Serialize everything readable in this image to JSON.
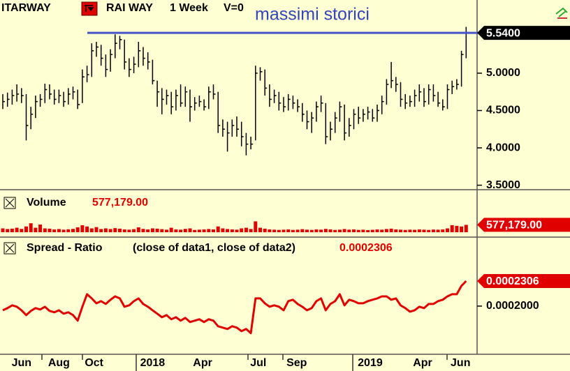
{
  "chart_data": [
    {
      "type": "ohlc",
      "symbol": "ITARWAY",
      "title": "RAI WAY",
      "interval": "1 Week",
      "note": "V=0",
      "color": "#000000",
      "annotation": {
        "text": "massimi storici",
        "level": 5.54,
        "color": "#4455cc"
      },
      "high": [
        4.72,
        4.74,
        4.78,
        4.85,
        4.8,
        4.72,
        4.55,
        4.7,
        4.72,
        4.86,
        4.85,
        4.78,
        4.78,
        4.75,
        4.8,
        4.82,
        4.78,
        5.05,
        5.1,
        5.4,
        5.42,
        5.38,
        5.25,
        5.32,
        5.52,
        5.5,
        5.45,
        5.2,
        5.22,
        5.42,
        5.35,
        5.28,
        5.18,
        4.9,
        4.8,
        4.78,
        4.75,
        4.78,
        4.85,
        4.82,
        4.78,
        4.68,
        4.7,
        4.65,
        4.82,
        4.85,
        4.75,
        4.38,
        4.35,
        4.38,
        4.42,
        4.35,
        4.2,
        4.15,
        5.1,
        5.08,
        5.05,
        4.85,
        4.78,
        4.75,
        4.68,
        4.72,
        4.7,
        4.65,
        4.6,
        4.5,
        4.48,
        4.62,
        4.7,
        4.6,
        4.35,
        4.48,
        4.62,
        4.58,
        4.4,
        4.52,
        4.55,
        4.52,
        4.55,
        4.52,
        4.58,
        4.7,
        4.92,
        5.15,
        4.95,
        4.88,
        4.72,
        4.7,
        4.78,
        4.85,
        4.8,
        4.85,
        4.85,
        4.75,
        4.65,
        4.85,
        4.9,
        4.92,
        5.3,
        5.62
      ],
      "low": [
        4.52,
        4.55,
        4.58,
        4.62,
        4.6,
        4.1,
        4.25,
        4.4,
        4.55,
        4.6,
        4.65,
        4.58,
        4.6,
        4.55,
        4.58,
        4.65,
        4.52,
        4.6,
        4.88,
        4.95,
        5.22,
        5.1,
        4.95,
        5.02,
        5.2,
        5.32,
        5.05,
        4.95,
        5.0,
        5.08,
        5.1,
        5.05,
        4.85,
        4.55,
        4.45,
        4.58,
        4.45,
        4.5,
        4.55,
        4.55,
        4.35,
        4.5,
        4.55,
        4.5,
        4.52,
        4.65,
        4.2,
        4.15,
        3.95,
        4.15,
        4.15,
        4.02,
        3.9,
        3.98,
        4.1,
        4.9,
        4.7,
        4.55,
        4.6,
        4.5,
        4.48,
        4.5,
        4.52,
        4.48,
        4.35,
        4.25,
        4.2,
        4.35,
        4.48,
        4.05,
        4.1,
        4.2,
        4.35,
        4.1,
        4.15,
        4.25,
        4.32,
        4.35,
        4.38,
        4.35,
        4.35,
        4.45,
        4.58,
        4.8,
        4.75,
        4.55,
        4.52,
        4.55,
        4.55,
        4.62,
        4.55,
        4.58,
        4.62,
        4.55,
        4.5,
        4.52,
        4.72,
        4.78,
        4.82,
        5.2
      ],
      "close": [
        4.62,
        4.65,
        4.7,
        4.72,
        4.7,
        4.3,
        4.45,
        4.62,
        4.65,
        4.78,
        4.72,
        4.65,
        4.7,
        4.62,
        4.72,
        4.75,
        4.58,
        4.95,
        4.98,
        5.3,
        5.35,
        5.2,
        5.05,
        5.25,
        5.4,
        5.45,
        5.15,
        5.05,
        5.12,
        5.3,
        5.2,
        5.15,
        4.9,
        4.75,
        4.65,
        4.7,
        4.55,
        4.7,
        4.6,
        4.75,
        4.55,
        4.6,
        4.62,
        4.55,
        4.75,
        4.72,
        4.3,
        4.25,
        4.2,
        4.3,
        4.25,
        4.15,
        4.05,
        4.05,
        5.0,
        5.02,
        4.8,
        4.65,
        4.7,
        4.6,
        4.55,
        4.65,
        4.6,
        4.55,
        4.45,
        4.35,
        4.4,
        4.55,
        4.6,
        4.15,
        4.25,
        4.4,
        4.55,
        4.2,
        4.3,
        4.45,
        4.4,
        4.45,
        4.48,
        4.4,
        4.5,
        4.62,
        4.85,
        4.9,
        4.85,
        4.65,
        4.6,
        4.62,
        4.7,
        4.75,
        4.62,
        4.78,
        4.7,
        4.6,
        4.55,
        4.78,
        4.82,
        4.85,
        5.25,
        5.54
      ],
      "ylim": [
        3.44,
        5.98
      ],
      "yticks": [
        {
          "value": 3.5,
          "label": "3.5000"
        },
        {
          "value": 4,
          "label": "4.0000"
        },
        {
          "value": 4.5,
          "label": "4.5000"
        },
        {
          "value": 5,
          "label": "5.0000"
        }
      ],
      "xticks": [
        {
          "value": 4,
          "label": "Jun"
        },
        {
          "value": 12,
          "label": "Aug"
        },
        {
          "value": 19.5,
          "label": "Oct"
        },
        {
          "value": 32,
          "label": "2018"
        },
        {
          "value": 42.7,
          "label": "Apr"
        },
        {
          "value": 54.6,
          "label": "Jul"
        },
        {
          "value": 62.8,
          "label": "Sep"
        },
        {
          "value": 78.5,
          "label": "2019"
        },
        {
          "value": 89.7,
          "label": "Apr"
        },
        {
          "value": 97.8,
          "label": "Jun"
        }
      ],
      "last_value": {
        "value": 5.54,
        "label": "5.5400"
      }
    },
    {
      "type": "bar",
      "title": "Volume",
      "color": "#e00000",
      "values": [
        300000,
        250000,
        280000,
        350000,
        260000,
        450000,
        700000,
        350000,
        600000,
        300000,
        280000,
        220000,
        250000,
        200000,
        230000,
        260000,
        380000,
        550000,
        450000,
        300000,
        400000,
        250000,
        300000,
        250000,
        320000,
        280000,
        220000,
        200000,
        240000,
        380000,
        260000,
        220000,
        300000,
        280000,
        240000,
        200000,
        350000,
        220000,
        200000,
        260000,
        300000,
        180000,
        200000,
        220000,
        250000,
        220000,
        450000,
        300000,
        250000,
        220000,
        200000,
        300000,
        350000,
        250000,
        850000,
        350000,
        280000,
        220000,
        200000,
        180000,
        200000,
        220000,
        180000,
        200000,
        240000,
        200000,
        180000,
        220000,
        200000,
        260000,
        220000,
        180000,
        200000,
        250000,
        200000,
        220000,
        180000,
        200000,
        170000,
        190000,
        220000,
        200000,
        250000,
        280000,
        220000,
        200000,
        180000,
        200000,
        190000,
        220000,
        200000,
        180000,
        210000,
        200000,
        220000,
        300000,
        550000,
        500000,
        450000,
        577179
      ],
      "ylim": [
        0,
        3000000
      ],
      "last_value": {
        "value": 577179,
        "label": "577,179.00"
      }
    },
    {
      "type": "line",
      "title": "Spread - Ratio",
      "subtitle": "(close of data1,  close of data2)",
      "color": "#e00000",
      "values": [
        0.0001949,
        0.0001975,
        0.0002009,
        0.0001992,
        0.0001949,
        0.000189,
        0.0001941,
        0.0001975,
        0.0001958,
        0.0001992,
        0.0001941,
        0.0001924,
        0.0001949,
        0.0001907,
        0.0001924,
        0.000189,
        0.0001822,
        0.0001992,
        0.0002145,
        0.0002094,
        0.0002034,
        0.000206,
        0.0002026,
        0.0002077,
        0.0002119,
        0.0002094,
        0.0001992,
        0.0002009,
        0.000206,
        0.0002094,
        0.0002026,
        0.0001992,
        0.0001949,
        0.0001907,
        0.0001864,
        0.000189,
        0.0001839,
        0.0001864,
        0.0001822,
        0.0001856,
        0.0001805,
        0.0001822,
        0.0001839,
        0.0001805,
        0.0001839,
        0.0001822,
        0.0001754,
        0.0001737,
        0.000172,
        0.0001754,
        0.0001737,
        0.0001694,
        0.000172,
        0.0001669,
        0.0002094,
        0.0002094,
        0.0002034,
        0.0001992,
        0.0002009,
        0.0001992,
        0.0001949,
        0.000206,
        0.0002077,
        0.0002026,
        0.0001992,
        0.0001949,
        0.0001975,
        0.000206,
        0.0002094,
        0.0001949,
        0.0002026,
        0.000206,
        0.0002145,
        0.0002009,
        0.0002077,
        0.000206,
        0.0002034,
        0.0002034,
        0.000206,
        0.0002077,
        0.0002094,
        0.0002119,
        0.0002119,
        0.0002077,
        0.0002094,
        0.0002009,
        0.0001975,
        0.0001932,
        0.0001949,
        0.0001992,
        0.0001975,
        0.0002026,
        0.0002026,
        0.000206,
        0.0002077,
        0.0002119,
        0.0002145,
        0.0002145,
        0.0002247,
        0.0002306
      ],
      "ylim": [
        0.000142,
        0.00028
      ],
      "yticks": [
        {
          "value": 0.0002,
          "label": "0.0002000"
        }
      ],
      "last_value": {
        "value": 0.0002306,
        "label": "0.0002306"
      }
    }
  ]
}
